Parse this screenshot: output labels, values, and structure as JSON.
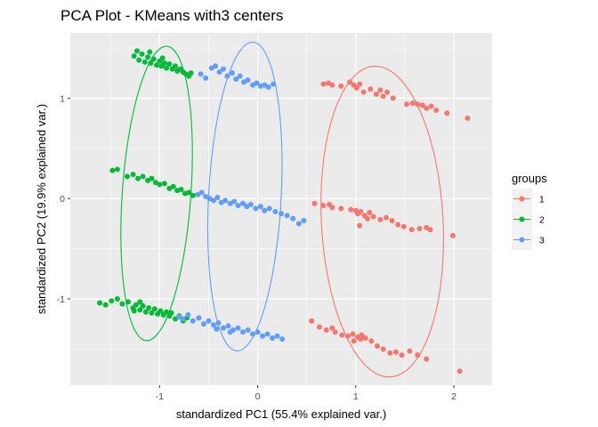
{
  "chart_data": {
    "type": "scatter",
    "title": "PCA Plot - KMeans with3 centers",
    "xlabel": "standardized PC1 (55.4% explained var.)",
    "ylabel": "standardized PC2 (19.9% explained var.)",
    "xlim": [
      -1.91,
      2.39
    ],
    "ylim": [
      -1.86,
      1.65
    ],
    "xticks": [
      -1,
      0,
      1,
      2
    ],
    "xtick_labels": [
      "-1",
      "0",
      "1",
      "2"
    ],
    "yticks": [
      -1,
      0,
      1
    ],
    "ytick_labels": [
      "-1",
      "0",
      "1"
    ],
    "grid": true,
    "legend_title": "groups",
    "legend_position": "right",
    "series": [
      {
        "name": "1",
        "color": "#F8766D",
        "ellipse": {
          "cx": 1.27,
          "cy": -0.23,
          "rx": 0.62,
          "ry": 1.55,
          "angle": -3
        },
        "points": [
          [
            0.67,
            1.14
          ],
          [
            0.72,
            1.15
          ],
          [
            0.76,
            1.13
          ],
          [
            0.85,
            1.12
          ],
          [
            0.94,
            1.16
          ],
          [
            0.98,
            1.13
          ],
          [
            1.01,
            1.1
          ],
          [
            1.04,
            1.14
          ],
          [
            1.08,
            1.06
          ],
          [
            1.15,
            1.09
          ],
          [
            1.21,
            1.04
          ],
          [
            1.25,
            1.08
          ],
          [
            1.28,
            1.02
          ],
          [
            1.32,
            1.06
          ],
          [
            1.38,
            1.0
          ],
          [
            1.52,
            0.94
          ],
          [
            1.58,
            0.95
          ],
          [
            1.63,
            0.94
          ],
          [
            1.68,
            0.93
          ],
          [
            1.72,
            0.9
          ],
          [
            1.77,
            0.92
          ],
          [
            1.82,
            0.88
          ],
          [
            1.93,
            0.85
          ],
          [
            2.14,
            0.8
          ],
          [
            0.58,
            -0.05
          ],
          [
            0.67,
            -0.07
          ],
          [
            0.73,
            -0.06
          ],
          [
            0.76,
            -0.09
          ],
          [
            0.85,
            -0.1
          ],
          [
            0.95,
            -0.11
          ],
          [
            1.0,
            -0.12
          ],
          [
            1.02,
            -0.15
          ],
          [
            1.05,
            -0.13
          ],
          [
            1.09,
            -0.17
          ],
          [
            1.14,
            -0.14
          ],
          [
            1.18,
            -0.18
          ],
          [
            1.25,
            -0.21
          ],
          [
            1.31,
            -0.19
          ],
          [
            1.37,
            -0.22
          ],
          [
            1.43,
            -0.26
          ],
          [
            1.49,
            -0.28
          ],
          [
            1.57,
            -0.31
          ],
          [
            1.65,
            -0.3
          ],
          [
            1.72,
            -0.29
          ],
          [
            1.76,
            -0.31
          ],
          [
            1.99,
            -0.37
          ],
          [
            1.04,
            -0.27
          ],
          [
            1.12,
            -0.2
          ],
          [
            0.55,
            -1.22
          ],
          [
            0.63,
            -1.28
          ],
          [
            0.7,
            -1.31
          ],
          [
            0.76,
            -1.29
          ],
          [
            0.79,
            -1.33
          ],
          [
            0.86,
            -1.36
          ],
          [
            0.92,
            -1.37
          ],
          [
            0.97,
            -1.35
          ],
          [
            1.02,
            -1.38
          ],
          [
            1.06,
            -1.36
          ],
          [
            1.1,
            -1.39
          ],
          [
            1.16,
            -1.42
          ],
          [
            1.22,
            -1.47
          ],
          [
            1.28,
            -1.5
          ],
          [
            1.35,
            -1.54
          ],
          [
            1.41,
            -1.53
          ],
          [
            1.47,
            -1.56
          ],
          [
            1.55,
            -1.52
          ],
          [
            1.63,
            -1.56
          ],
          [
            1.72,
            -1.6
          ],
          [
            2.06,
            -1.72
          ],
          [
            0.98,
            -1.42
          ],
          [
            1.05,
            -1.4
          ]
        ]
      },
      {
        "name": "2",
        "color": "#00BA38",
        "ellipse": {
          "cx": -1.03,
          "cy": 0.05,
          "rx": 0.35,
          "ry": 1.47,
          "angle": 4
        },
        "points": [
          [
            -1.26,
            1.42
          ],
          [
            -1.23,
            1.47
          ],
          [
            -1.21,
            1.38
          ],
          [
            -1.18,
            1.44
          ],
          [
            -1.15,
            1.36
          ],
          [
            -1.12,
            1.41
          ],
          [
            -1.09,
            1.35
          ],
          [
            -1.06,
            1.39
          ],
          [
            -1.03,
            1.33
          ],
          [
            -1.0,
            1.37
          ],
          [
            -0.98,
            1.32
          ],
          [
            -0.95,
            1.35
          ],
          [
            -0.93,
            1.3
          ],
          [
            -0.9,
            1.34
          ],
          [
            -0.87,
            1.29
          ],
          [
            -0.84,
            1.32
          ],
          [
            -0.82,
            1.27
          ],
          [
            -0.79,
            1.29
          ],
          [
            -0.76,
            1.26
          ],
          [
            -0.73,
            1.24
          ],
          [
            -0.7,
            1.22
          ],
          [
            -0.68,
            1.25
          ],
          [
            -1.1,
            1.46
          ],
          [
            -0.97,
            1.4
          ],
          [
            -1.48,
            0.28
          ],
          [
            -1.43,
            0.29
          ],
          [
            -1.33,
            0.22
          ],
          [
            -1.27,
            0.24
          ],
          [
            -1.22,
            0.2
          ],
          [
            -1.17,
            0.22
          ],
          [
            -1.12,
            0.18
          ],
          [
            -1.08,
            0.2
          ],
          [
            -1.04,
            0.16
          ],
          [
            -1.0,
            0.14
          ],
          [
            -0.95,
            0.15
          ],
          [
            -0.9,
            0.1
          ],
          [
            -0.86,
            0.12
          ],
          [
            -0.82,
            0.08
          ],
          [
            -0.78,
            0.09
          ],
          [
            -0.74,
            0.05
          ],
          [
            -0.7,
            0.06
          ],
          [
            -0.66,
            0.03
          ],
          [
            -1.61,
            -1.04
          ],
          [
            -1.55,
            -1.06
          ],
          [
            -1.49,
            -1.02
          ],
          [
            -1.43,
            -1.0
          ],
          [
            -1.38,
            -1.05
          ],
          [
            -1.32,
            -1.03
          ],
          [
            -1.27,
            -1.09
          ],
          [
            -1.24,
            -1.06
          ],
          [
            -1.2,
            -1.11
          ],
          [
            -1.17,
            -1.07
          ],
          [
            -1.14,
            -1.13
          ],
          [
            -1.11,
            -1.09
          ],
          [
            -1.08,
            -1.14
          ],
          [
            -1.05,
            -1.1
          ],
          [
            -1.02,
            -1.15
          ],
          [
            -0.99,
            -1.12
          ],
          [
            -0.96,
            -1.16
          ],
          [
            -0.93,
            -1.13
          ],
          [
            -0.9,
            -1.17
          ],
          [
            -0.88,
            -1.14
          ],
          [
            -0.84,
            -1.2
          ],
          [
            -0.8,
            -1.17
          ],
          [
            -0.76,
            -1.22
          ],
          [
            -0.72,
            -1.19
          ],
          [
            -1.26,
            -1.12
          ],
          [
            -1.2,
            -1.03
          ]
        ]
      },
      {
        "name": "3",
        "color": "#619CFF",
        "ellipse": {
          "cx": -0.13,
          "cy": 0.02,
          "rx": 0.37,
          "ry": 1.54,
          "angle": 3
        },
        "points": [
          [
            -0.47,
            1.3
          ],
          [
            -0.43,
            1.32
          ],
          [
            -0.39,
            1.26
          ],
          [
            -0.35,
            1.29
          ],
          [
            -0.31,
            1.22
          ],
          [
            -0.26,
            1.25
          ],
          [
            -0.22,
            1.19
          ],
          [
            -0.18,
            1.22
          ],
          [
            -0.14,
            1.16
          ],
          [
            -0.1,
            1.18
          ],
          [
            -0.05,
            1.13
          ],
          [
            -0.01,
            1.15
          ],
          [
            0.03,
            1.12
          ],
          [
            0.07,
            1.13
          ],
          [
            0.11,
            1.11
          ],
          [
            0.16,
            1.14
          ],
          [
            -0.58,
            1.24
          ],
          [
            -0.53,
            1.2
          ],
          [
            -0.61,
            0.04
          ],
          [
            -0.57,
            0.06
          ],
          [
            -0.53,
            0.02
          ],
          [
            -0.49,
            0.0
          ],
          [
            -0.45,
            -0.02
          ],
          [
            -0.41,
            0.01
          ],
          [
            -0.37,
            -0.04
          ],
          [
            -0.33,
            -0.02
          ],
          [
            -0.28,
            -0.05
          ],
          [
            -0.24,
            -0.03
          ],
          [
            -0.2,
            -0.07
          ],
          [
            -0.15,
            -0.05
          ],
          [
            -0.11,
            -0.08
          ],
          [
            -0.07,
            -0.06
          ],
          [
            -0.02,
            -0.1
          ],
          [
            0.03,
            -0.08
          ],
          [
            0.07,
            -0.12
          ],
          [
            0.12,
            -0.1
          ],
          [
            0.18,
            -0.13
          ],
          [
            0.24,
            -0.15
          ],
          [
            0.3,
            -0.17
          ],
          [
            0.36,
            -0.2
          ],
          [
            0.42,
            -0.25
          ],
          [
            0.47,
            -0.22
          ],
          [
            -0.8,
            -1.18
          ],
          [
            -0.76,
            -1.2
          ],
          [
            -0.71,
            -1.16
          ],
          [
            -0.66,
            -1.22
          ],
          [
            -0.6,
            -1.19
          ],
          [
            -0.55,
            -1.25
          ],
          [
            -0.5,
            -1.22
          ],
          [
            -0.45,
            -1.26
          ],
          [
            -0.4,
            -1.24
          ],
          [
            -0.35,
            -1.29
          ],
          [
            -0.3,
            -1.27
          ],
          [
            -0.25,
            -1.31
          ],
          [
            -0.2,
            -1.29
          ],
          [
            -0.15,
            -1.33
          ],
          [
            -0.1,
            -1.31
          ],
          [
            -0.05,
            -1.35
          ],
          [
            0.0,
            -1.33
          ],
          [
            0.05,
            -1.37
          ],
          [
            0.1,
            -1.35
          ],
          [
            0.15,
            -1.39
          ],
          [
            0.2,
            -1.37
          ],
          [
            0.25,
            -1.4
          ],
          [
            -0.42,
            -1.3
          ],
          [
            -0.28,
            -1.33
          ]
        ]
      }
    ]
  }
}
